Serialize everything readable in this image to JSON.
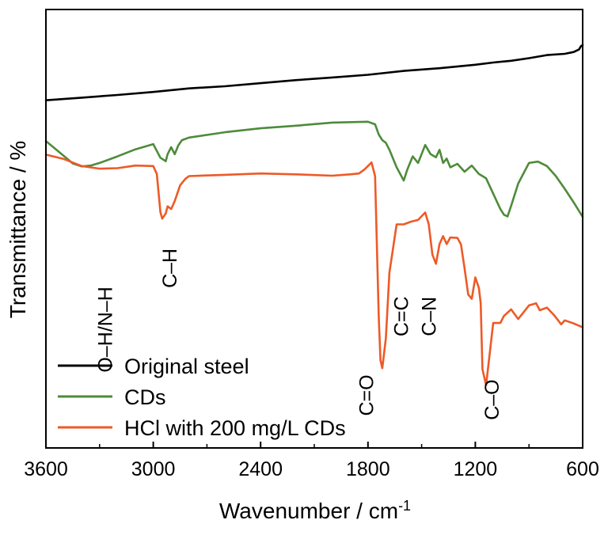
{
  "chart_data": {
    "type": "line",
    "title": "",
    "xlabel": "Wavenumber / cm",
    "xlabel_sup": "-1",
    "ylabel": "Transmittance / %",
    "xlim": [
      3600,
      600
    ],
    "x_reversed": true,
    "xticks": [
      3600,
      3000,
      2400,
      1800,
      1200,
      600
    ],
    "yticks": [],
    "grid": false,
    "legend": {
      "placement": "bottom-left",
      "entries": [
        "Original steel",
        "CDs",
        "HCl with 200 mg/L CDs"
      ]
    },
    "y_units": "arbitrary offset transmittance (0 = bottom frame, 100 = top frame)",
    "series": [
      {
        "name": "Original steel",
        "color": "#000000",
        "x": [
          3600,
          3400,
          3200,
          3000,
          2800,
          2600,
          2400,
          2200,
          2000,
          1800,
          1600,
          1400,
          1200,
          1100,
          1000,
          900,
          800,
          700,
          650,
          620,
          610,
          600
        ],
        "y": [
          79.3,
          79.9,
          80.5,
          81.2,
          82.0,
          82.5,
          83.2,
          83.9,
          84.5,
          85.1,
          86.0,
          86.6,
          87.4,
          87.9,
          88.3,
          88.9,
          89.6,
          89.9,
          90.3,
          90.9,
          91.6,
          91.9
        ]
      },
      {
        "name": "CDs",
        "color": "#4e8b3a",
        "x": [
          3600,
          3500,
          3450,
          3400,
          3350,
          3300,
          3200,
          3100,
          3000,
          2960,
          2930,
          2920,
          2900,
          2880,
          2860,
          2840,
          2800,
          2600,
          2400,
          2200,
          2000,
          1800,
          1760,
          1740,
          1720,
          1700,
          1680,
          1640,
          1600,
          1580,
          1550,
          1520,
          1480,
          1450,
          1420,
          1400,
          1380,
          1360,
          1340,
          1300,
          1260,
          1220,
          1180,
          1140,
          1100,
          1060,
          1040,
          1020,
          1000,
          960,
          900,
          850,
          800,
          750,
          700,
          650,
          600
        ],
        "y": [
          70.0,
          66.6,
          64.9,
          64.2,
          64.4,
          65.0,
          66.5,
          68.1,
          69.3,
          66.2,
          65.4,
          67.0,
          68.6,
          67.0,
          69.0,
          70.2,
          70.8,
          72.0,
          72.9,
          73.5,
          74.2,
          74.4,
          73.8,
          71.5,
          70.2,
          69.6,
          68.0,
          64.0,
          61.0,
          63.5,
          66.5,
          65.0,
          69.1,
          67.0,
          66.3,
          68.0,
          65.0,
          66.0,
          64.0,
          64.8,
          63.0,
          64.4,
          62.5,
          61.5,
          58.0,
          54.5,
          53.2,
          52.8,
          55.2,
          60.3,
          65.0,
          65.3,
          64.3,
          62.0,
          59.1,
          56.0,
          52.7
        ]
      },
      {
        "name": "HCl with 200 mg/L CDs",
        "color": "#ed5a27",
        "x": [
          3600,
          3500,
          3400,
          3300,
          3200,
          3100,
          3000,
          2980,
          2960,
          2950,
          2930,
          2920,
          2900,
          2880,
          2850,
          2820,
          2800,
          2600,
          2400,
          2200,
          2000,
          1900,
          1850,
          1820,
          1780,
          1760,
          1740,
          1730,
          1720,
          1700,
          1680,
          1640,
          1600,
          1560,
          1520,
          1480,
          1460,
          1440,
          1420,
          1400,
          1380,
          1360,
          1340,
          1300,
          1280,
          1260,
          1240,
          1220,
          1200,
          1180,
          1170,
          1160,
          1140,
          1100,
          1060,
          1040,
          1000,
          960,
          900,
          860,
          840,
          800,
          760,
          720,
          700,
          650,
          600
        ],
        "y": [
          66.9,
          65.9,
          64.3,
          63.7,
          63.8,
          64.4,
          64.3,
          62.5,
          53.8,
          52.3,
          53.5,
          55.1,
          54.5,
          56.3,
          59.9,
          61.4,
          62.0,
          62.3,
          62.6,
          62.4,
          62.1,
          62.4,
          62.6,
          63.5,
          65.1,
          62.0,
          30.0,
          20.0,
          18.2,
          25.0,
          40.0,
          51.0,
          51.0,
          51.6,
          52.0,
          53.7,
          51.0,
          44.1,
          42.0,
          46.5,
          48.3,
          46.5,
          48.0,
          47.9,
          46.4,
          41.0,
          35.0,
          34.0,
          38.9,
          36.5,
          33.0,
          18.0,
          14.3,
          28.5,
          28.5,
          30.1,
          31.6,
          29.4,
          32.5,
          33.0,
          31.4,
          32.0,
          30.3,
          28.2,
          29.1,
          28.4,
          27.5
        ]
      }
    ],
    "annotations": [
      {
        "text": "O–H/N–H",
        "x": 3230,
        "y": 27,
        "rotate": -90
      },
      {
        "text": "C–H",
        "x": 2870,
        "y": 41,
        "rotate": -90
      },
      {
        "text": "C=O",
        "x": 1770,
        "y": 12,
        "rotate": -90
      },
      {
        "text": "C=C",
        "x": 1575,
        "y": 30,
        "rotate": -90
      },
      {
        "text": "C–N",
        "x": 1420,
        "y": 30,
        "rotate": -90
      },
      {
        "text": "C–O",
        "x": 1070,
        "y": 11,
        "rotate": -90
      }
    ]
  }
}
